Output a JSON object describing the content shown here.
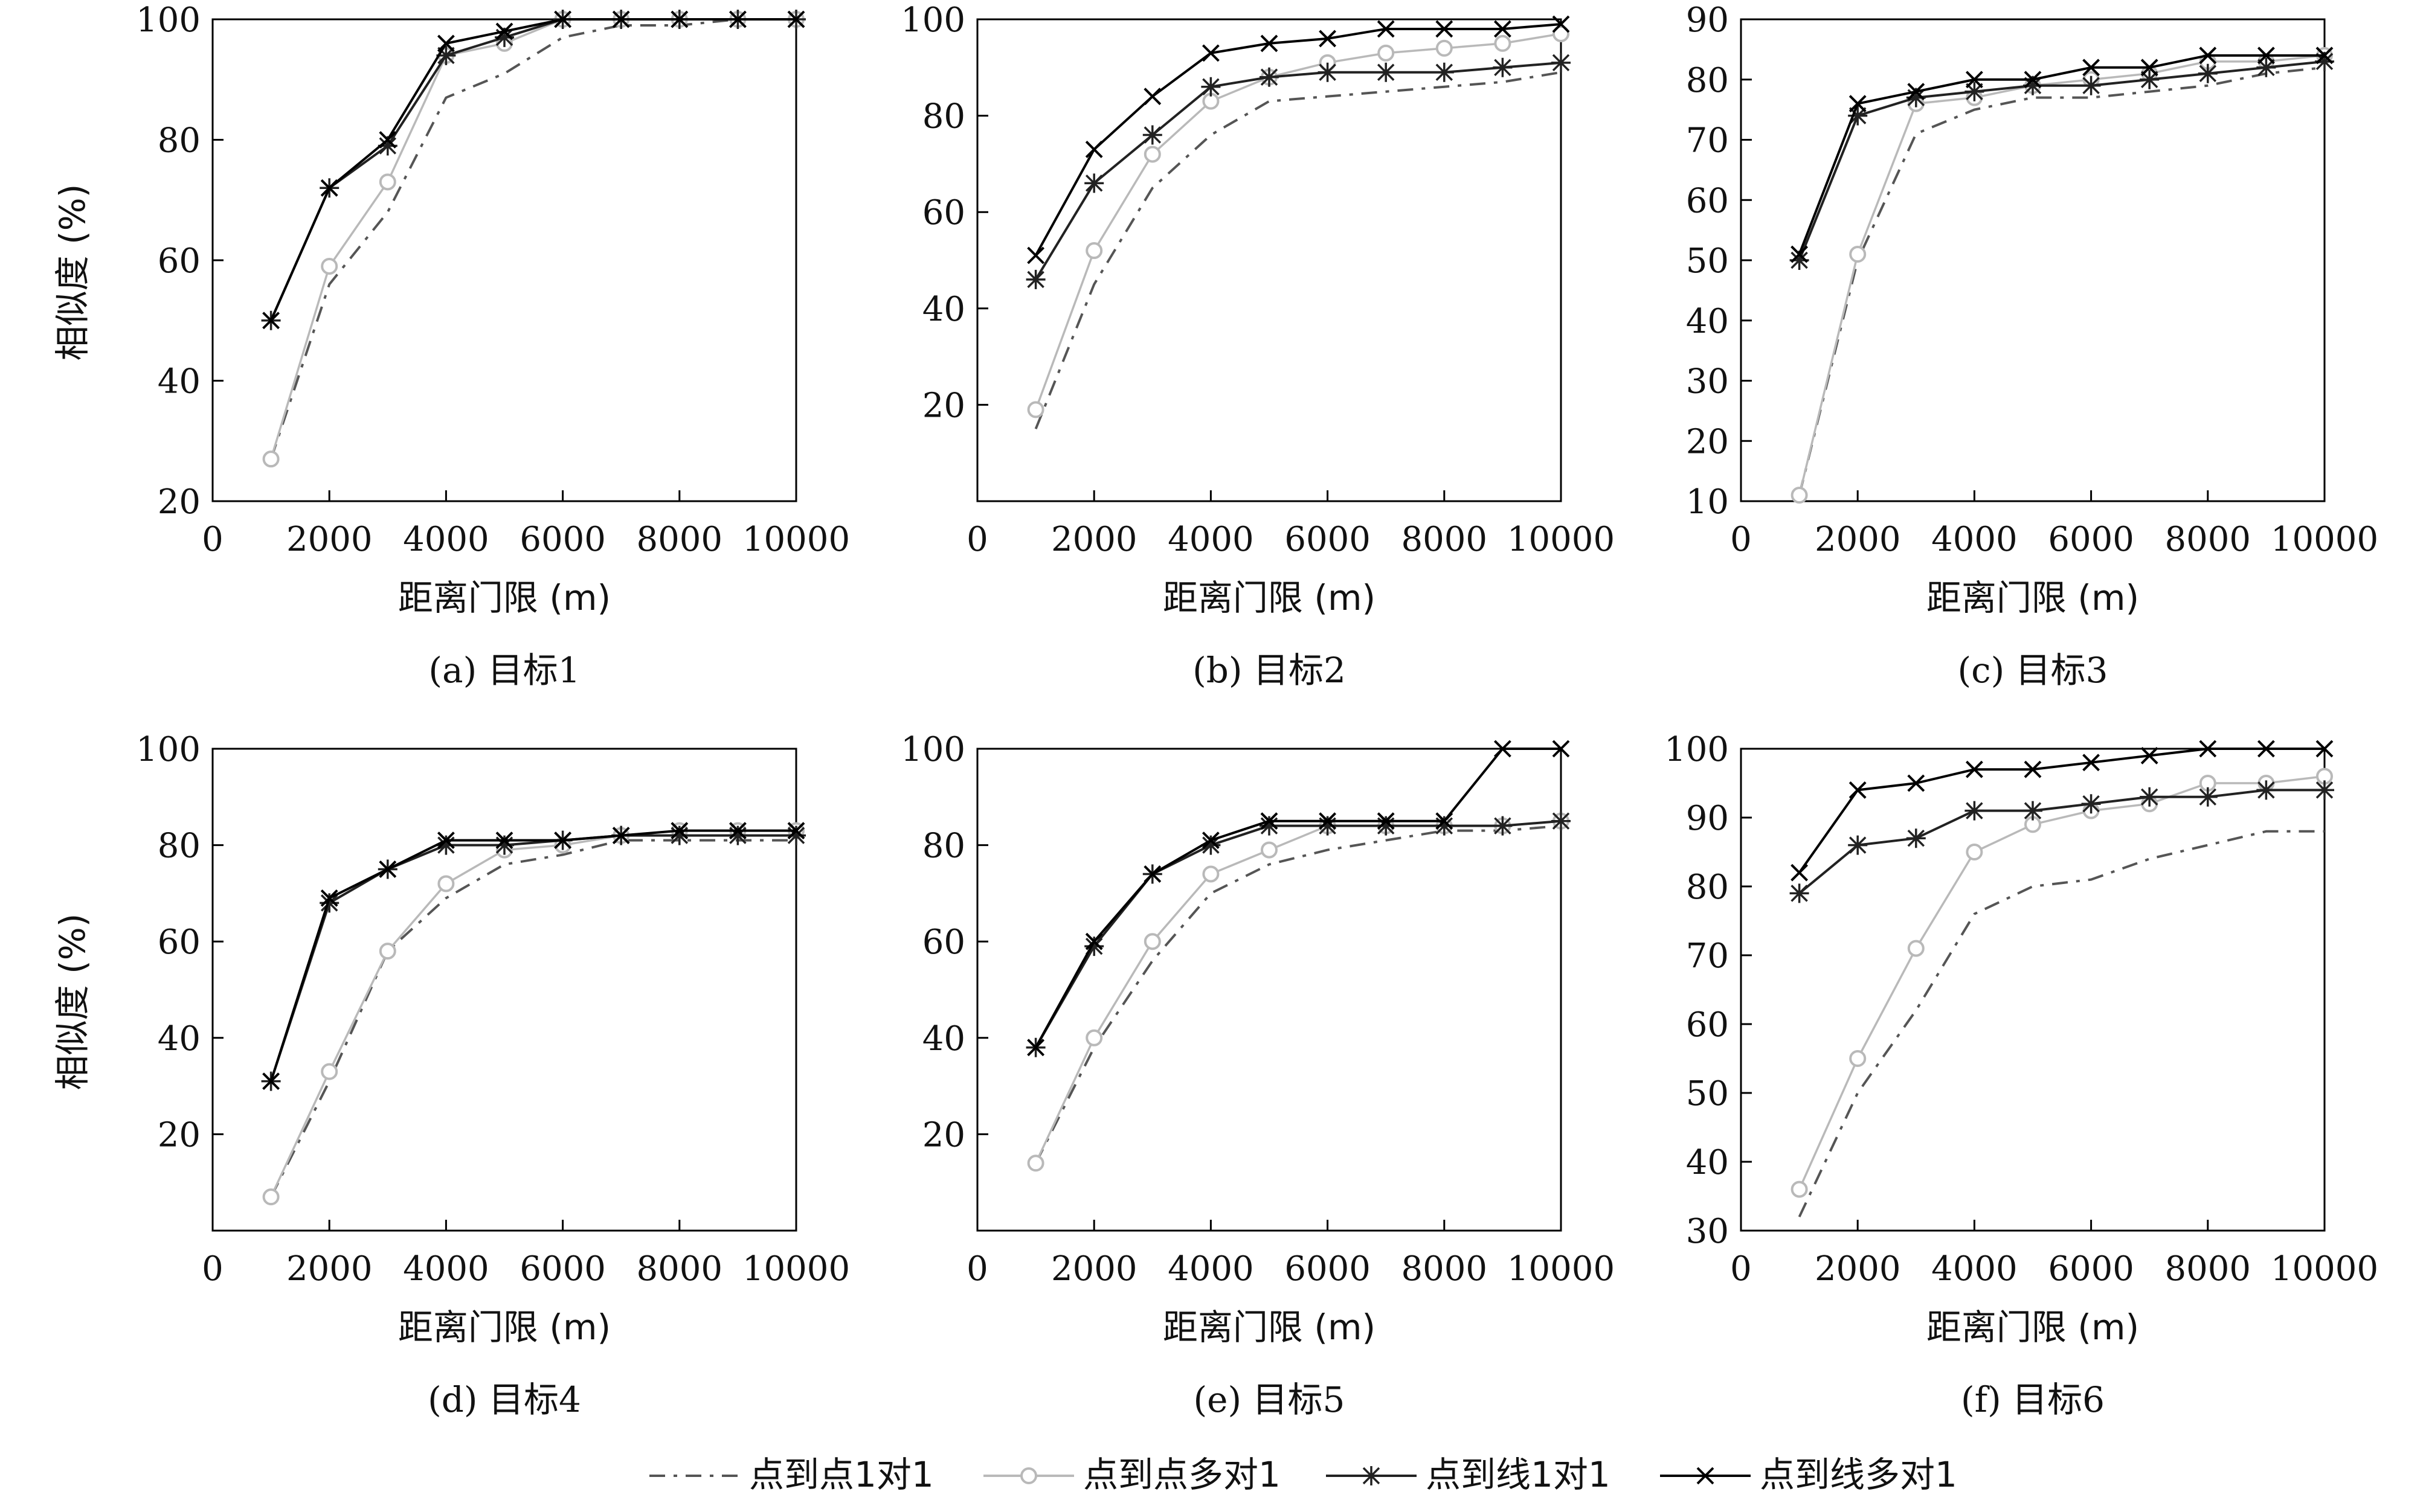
{
  "legend": [
    {
      "series": "点到点1对1"
    },
    {
      "series": "点到点多对1"
    },
    {
      "series": "点到线1对1"
    },
    {
      "series": "点到线多对1"
    }
  ],
  "series_styles": {
    "点到点1对1": {
      "color": "#555555",
      "dash": "dashdot",
      "marker": "none"
    },
    "点到点多对1": {
      "color": "#b9b9b9",
      "dash": "solid",
      "marker": "circle"
    },
    "点到线1对1": {
      "color": "#222222",
      "dash": "solid",
      "marker": "asterisk"
    },
    "点到线多对1": {
      "color": "#000000",
      "dash": "solid",
      "marker": "cross"
    }
  },
  "chart_data": [
    {
      "type": "line",
      "caption": "(a) 目标1",
      "xlabel": "距离门限 (m)",
      "ylabel": "相似度 (%)",
      "xlim": [
        0,
        10000
      ],
      "ylim": [
        20,
        100
      ],
      "xticks": [
        0,
        2000,
        4000,
        6000,
        8000,
        10000
      ],
      "yticks": [
        20,
        40,
        60,
        80,
        100
      ],
      "x": [
        1000,
        2000,
        3000,
        4000,
        5000,
        6000,
        7000,
        8000,
        9000,
        10000
      ],
      "series": [
        {
          "name": "点到点1对1",
          "values": [
            27,
            56,
            68,
            87,
            91,
            97,
            99,
            99,
            100,
            100
          ]
        },
        {
          "name": "点到点多对1",
          "values": [
            27,
            59,
            73,
            94,
            96,
            100,
            100,
            100,
            100,
            100
          ]
        },
        {
          "name": "点到线1对1",
          "values": [
            50,
            72,
            79,
            94,
            97,
            100,
            100,
            100,
            100,
            100
          ]
        },
        {
          "name": "点到线多对1",
          "values": [
            50,
            72,
            80,
            96,
            98,
            100,
            100,
            100,
            100,
            100
          ]
        }
      ]
    },
    {
      "type": "line",
      "caption": "(b) 目标2",
      "xlabel": "距离门限 (m)",
      "ylabel": "",
      "xlim": [
        0,
        10000
      ],
      "ylim": [
        0,
        100
      ],
      "xticks": [
        0,
        2000,
        4000,
        6000,
        8000,
        10000
      ],
      "yticks": [
        20,
        40,
        60,
        80,
        100
      ],
      "x": [
        1000,
        2000,
        3000,
        4000,
        5000,
        6000,
        7000,
        8000,
        9000,
        10000
      ],
      "series": [
        {
          "name": "点到点1对1",
          "values": [
            15,
            45,
            65,
            76,
            83,
            84,
            85,
            86,
            87,
            89
          ]
        },
        {
          "name": "点到点多对1",
          "values": [
            19,
            52,
            72,
            83,
            88,
            91,
            93,
            94,
            95,
            97
          ]
        },
        {
          "name": "点到线1对1",
          "values": [
            46,
            66,
            76,
            86,
            88,
            89,
            89,
            89,
            90,
            91
          ]
        },
        {
          "name": "点到线多对1",
          "values": [
            51,
            73,
            84,
            93,
            95,
            96,
            98,
            98,
            98,
            99
          ]
        }
      ]
    },
    {
      "type": "line",
      "caption": "(c) 目标3",
      "xlabel": "距离门限 (m)",
      "ylabel": "",
      "xlim": [
        0,
        10000
      ],
      "ylim": [
        10,
        90
      ],
      "xticks": [
        0,
        2000,
        4000,
        6000,
        8000,
        10000
      ],
      "yticks": [
        10,
        20,
        30,
        40,
        50,
        60,
        70,
        80,
        90
      ],
      "x": [
        1000,
        2000,
        3000,
        4000,
        5000,
        6000,
        7000,
        8000,
        9000,
        10000
      ],
      "series": [
        {
          "name": "点到点1对1",
          "values": [
            11,
            50,
            71,
            75,
            77,
            77,
            78,
            79,
            81,
            82
          ]
        },
        {
          "name": "点到点多对1",
          "values": [
            11,
            51,
            76,
            77,
            79,
            80,
            81,
            83,
            83,
            84
          ]
        },
        {
          "name": "点到线1对1",
          "values": [
            50,
            74,
            77,
            78,
            79,
            79,
            80,
            81,
            82,
            83
          ]
        },
        {
          "name": "点到线多对1",
          "values": [
            51,
            76,
            78,
            80,
            80,
            82,
            82,
            84,
            84,
            84
          ]
        }
      ]
    },
    {
      "type": "line",
      "caption": "(d) 目标4",
      "xlabel": "距离门限 (m)",
      "ylabel": "相似度 (%)",
      "xlim": [
        0,
        10000
      ],
      "ylim": [
        0,
        100
      ],
      "xticks": [
        0,
        2000,
        4000,
        6000,
        8000,
        10000
      ],
      "yticks": [
        20,
        40,
        60,
        80,
        100
      ],
      "x": [
        1000,
        2000,
        3000,
        4000,
        5000,
        6000,
        7000,
        8000,
        9000,
        10000
      ],
      "series": [
        {
          "name": "点到点1对1",
          "values": [
            7,
            31,
            58,
            69,
            76,
            78,
            81,
            81,
            81,
            81
          ]
        },
        {
          "name": "点到点多对1",
          "values": [
            7,
            33,
            58,
            72,
            79,
            80,
            82,
            83,
            83,
            83
          ]
        },
        {
          "name": "点到线1对1",
          "values": [
            31,
            68,
            75,
            80,
            80,
            81,
            82,
            82,
            82,
            82
          ]
        },
        {
          "name": "点到线多对1",
          "values": [
            31,
            69,
            75,
            81,
            81,
            81,
            82,
            83,
            83,
            83
          ]
        }
      ]
    },
    {
      "type": "line",
      "caption": "(e) 目标5",
      "xlabel": "距离门限 (m)",
      "ylabel": "",
      "xlim": [
        0,
        10000
      ],
      "ylim": [
        0,
        100
      ],
      "xticks": [
        0,
        2000,
        4000,
        6000,
        8000,
        10000
      ],
      "yticks": [
        20,
        40,
        60,
        80,
        100
      ],
      "x": [
        1000,
        2000,
        3000,
        4000,
        5000,
        6000,
        7000,
        8000,
        9000,
        10000
      ],
      "series": [
        {
          "name": "点到点1对1",
          "values": [
            14,
            38,
            56,
            70,
            76,
            79,
            81,
            83,
            83,
            84
          ]
        },
        {
          "name": "点到点多对1",
          "values": [
            14,
            40,
            60,
            74,
            79,
            84,
            84,
            84,
            84,
            85
          ]
        },
        {
          "name": "点到线1对1",
          "values": [
            38,
            59,
            74,
            80,
            84,
            84,
            84,
            84,
            84,
            85
          ]
        },
        {
          "name": "点到线多对1",
          "values": [
            38,
            60,
            74,
            81,
            85,
            85,
            85,
            85,
            100,
            100
          ]
        }
      ]
    },
    {
      "type": "line",
      "caption": "(f) 目标6",
      "xlabel": "距离门限 (m)",
      "ylabel": "",
      "xlim": [
        0,
        10000
      ],
      "ylim": [
        30,
        100
      ],
      "xticks": [
        0,
        2000,
        4000,
        6000,
        8000,
        10000
      ],
      "yticks": [
        30,
        40,
        50,
        60,
        70,
        80,
        90,
        100
      ],
      "x": [
        1000,
        2000,
        3000,
        4000,
        5000,
        6000,
        7000,
        8000,
        9000,
        10000
      ],
      "series": [
        {
          "name": "点到点1对1",
          "values": [
            32,
            50,
            62,
            76,
            80,
            81,
            84,
            86,
            88,
            88
          ]
        },
        {
          "name": "点到点多对1",
          "values": [
            36,
            55,
            71,
            85,
            89,
            91,
            92,
            95,
            95,
            96
          ]
        },
        {
          "name": "点到线1对1",
          "values": [
            79,
            86,
            87,
            91,
            91,
            92,
            93,
            93,
            94,
            94
          ]
        },
        {
          "name": "点到线多对1",
          "values": [
            82,
            94,
            95,
            97,
            97,
            98,
            99,
            100,
            100,
            100
          ]
        }
      ]
    }
  ]
}
